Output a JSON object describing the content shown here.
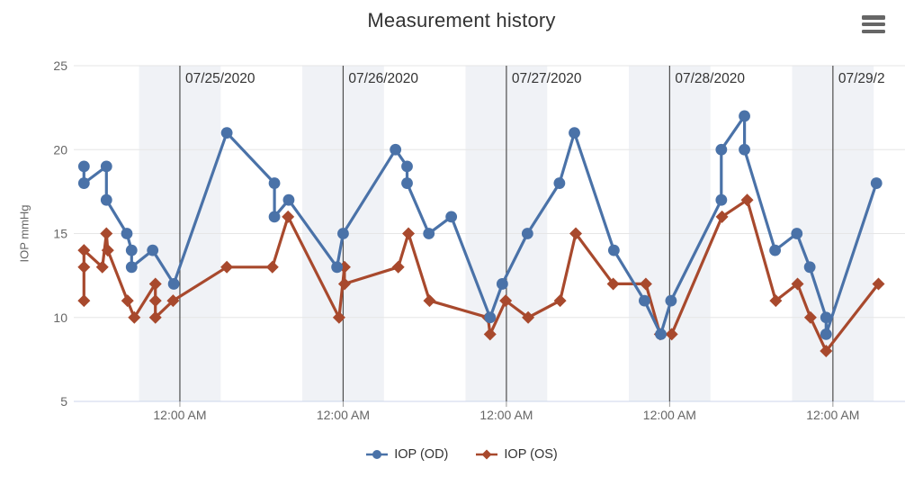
{
  "header": {
    "title": "Measurement history",
    "menu_icon": "hamburger-menu"
  },
  "chart_data": {
    "type": "line",
    "title": "Measurement history",
    "xlabel": "",
    "ylabel": "IOP mmHg",
    "ylim": [
      5,
      25
    ],
    "y_ticks": [
      5,
      10,
      15,
      20,
      25
    ],
    "grid": true,
    "legend_position": "bottom-center",
    "x_unit": "hours since 07/24/2020 00:00 (estimated from date plot lines)",
    "x_range_hours": [
      8.4,
      130.6
    ],
    "x_ticks": [
      {
        "t": 24,
        "label": "12:00 AM"
      },
      {
        "t": 48,
        "label": "12:00 AM"
      },
      {
        "t": 72,
        "label": "12:00 AM"
      },
      {
        "t": 96,
        "label": "12:00 AM"
      },
      {
        "t": 120,
        "label": "12:00 AM"
      }
    ],
    "day_lines": [
      {
        "t": 24,
        "label": "07/25/2020"
      },
      {
        "t": 48,
        "label": "07/26/2020"
      },
      {
        "t": 72,
        "label": "07/27/2020"
      },
      {
        "t": 96,
        "label": "07/28/2020"
      },
      {
        "t": 120,
        "label": "07/29/2"
      }
    ],
    "night_bands": [
      [
        18,
        30
      ],
      [
        42,
        54
      ],
      [
        66,
        78
      ],
      [
        90,
        102
      ],
      [
        114,
        126
      ]
    ],
    "colors": {
      "od_series": "#4a72a8",
      "os_series": "#a8492d",
      "night_band": "#f0f2f6",
      "grid_line": "#e6e6e6",
      "axis_line": "#ccd6eb",
      "date_line": "#4d4d4d",
      "tick_text": "#666666",
      "date_text": "#333333"
    },
    "series": [
      {
        "id": "od",
        "name": "IOP (OD)",
        "marker": "circle",
        "color": "#4a72a8",
        "points": [
          [
            9.9,
            19
          ],
          [
            9.9,
            18
          ],
          [
            13.2,
            19
          ],
          [
            13.2,
            17
          ],
          [
            16.2,
            15
          ],
          [
            16.9,
            14
          ],
          [
            16.9,
            13
          ],
          [
            20.0,
            14
          ],
          [
            23.1,
            12
          ],
          [
            30.9,
            21
          ],
          [
            37.9,
            18
          ],
          [
            37.9,
            16
          ],
          [
            40.0,
            17
          ],
          [
            47.1,
            13
          ],
          [
            48.0,
            15
          ],
          [
            55.7,
            20
          ],
          [
            57.4,
            19
          ],
          [
            57.4,
            18
          ],
          [
            60.6,
            15
          ],
          [
            63.9,
            16
          ],
          [
            69.6,
            10
          ],
          [
            71.4,
            12
          ],
          [
            75.1,
            15
          ],
          [
            79.8,
            18
          ],
          [
            82.0,
            21
          ],
          [
            87.8,
            14
          ],
          [
            92.3,
            11
          ],
          [
            94.7,
            9
          ],
          [
            96.2,
            11
          ],
          [
            103.6,
            17
          ],
          [
            103.6,
            20
          ],
          [
            107.0,
            22
          ],
          [
            107.0,
            20
          ],
          [
            111.5,
            14
          ],
          [
            114.7,
            15
          ],
          [
            116.6,
            13
          ],
          [
            119.0,
            10
          ],
          [
            119.0,
            9
          ],
          [
            126.4,
            18
          ]
        ]
      },
      {
        "id": "os",
        "name": "IOP (OS)",
        "marker": "diamond",
        "color": "#a8492d",
        "points": [
          [
            9.9,
            11
          ],
          [
            9.9,
            13
          ],
          [
            9.9,
            14
          ],
          [
            12.6,
            13
          ],
          [
            13.2,
            15
          ],
          [
            13.4,
            14
          ],
          [
            16.3,
            11
          ],
          [
            17.3,
            10
          ],
          [
            20.4,
            12
          ],
          [
            20.4,
            11
          ],
          [
            20.4,
            10
          ],
          [
            23.0,
            11
          ],
          [
            30.9,
            13
          ],
          [
            37.6,
            13
          ],
          [
            39.9,
            16
          ],
          [
            47.4,
            10
          ],
          [
            48.2,
            13
          ],
          [
            48.2,
            12
          ],
          [
            56.1,
            13
          ],
          [
            57.6,
            15
          ],
          [
            60.7,
            11
          ],
          [
            69.3,
            10
          ],
          [
            69.6,
            9
          ],
          [
            71.9,
            11
          ],
          [
            75.2,
            10
          ],
          [
            79.9,
            11
          ],
          [
            82.2,
            15
          ],
          [
            87.7,
            12
          ],
          [
            92.5,
            12
          ],
          [
            94.6,
            9
          ],
          [
            96.3,
            9
          ],
          [
            103.7,
            16
          ],
          [
            107.4,
            17
          ],
          [
            111.6,
            11
          ],
          [
            114.8,
            12
          ],
          [
            116.7,
            10
          ],
          [
            119.0,
            8
          ],
          [
            126.7,
            12
          ]
        ]
      }
    ]
  }
}
